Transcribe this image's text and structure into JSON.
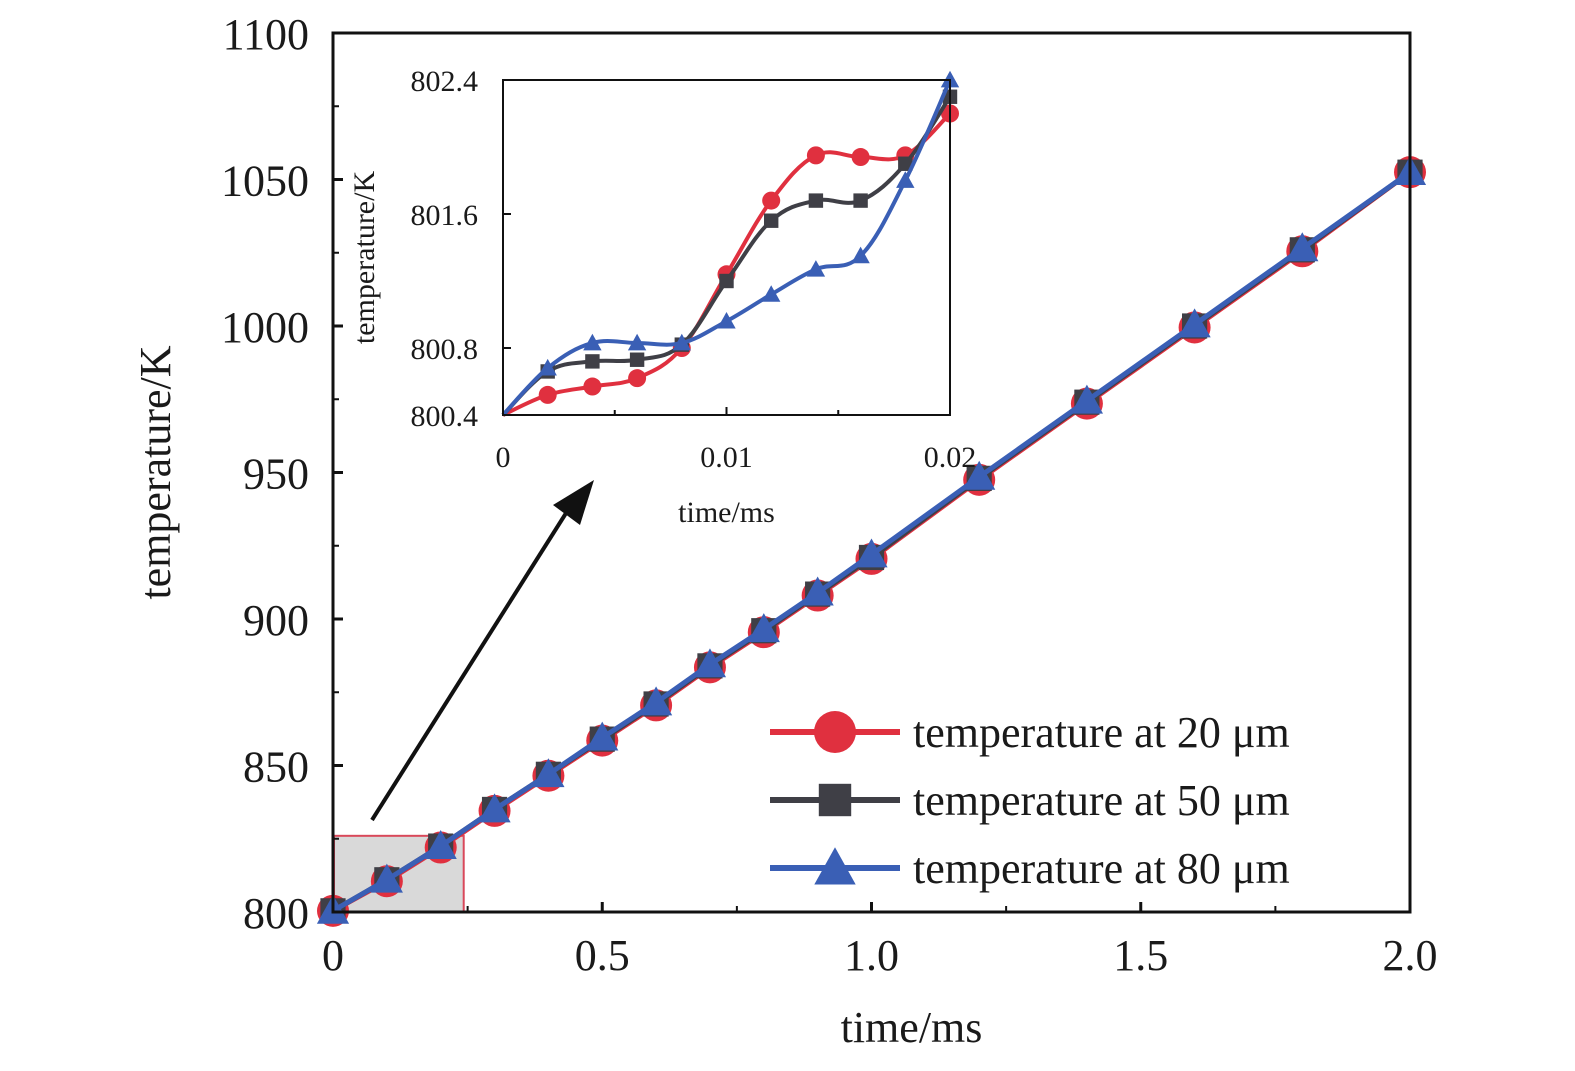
{
  "colors": {
    "series_20": "#e0303f",
    "series_50": "#3f3f46",
    "series_80": "#3a5fb5",
    "zoom_box_fill": "#d9d9d9",
    "zoom_box_stroke": "#d9485a",
    "arrow": "#111111"
  },
  "chart_data": [
    {
      "type": "line",
      "panel": "main",
      "xlabel": "time/ms",
      "ylabel": "temperature/K",
      "xlim": [
        0,
        2.0
      ],
      "ylim": [
        800,
        1100
      ],
      "xticks": [
        "0",
        "0.5",
        "1.0",
        "1.5",
        "2.0"
      ],
      "yticks": [
        "800",
        "850",
        "900",
        "950",
        "1000",
        "1050",
        "1100"
      ],
      "legend_position": "bottom-right",
      "grid": false,
      "series": [
        {
          "name": "temperature at 20 μm",
          "marker": "circle",
          "x": [
            0,
            0.1,
            0.2,
            0.3,
            0.4,
            0.5,
            0.6,
            0.7,
            0.8,
            0.9,
            1.0,
            1.2,
            1.4,
            1.6,
            1.8,
            2.0
          ],
          "y": [
            800.4,
            810.5,
            822,
            834.5,
            846.5,
            858.5,
            870.5,
            883.5,
            895.5,
            908,
            920.5,
            947.5,
            973.5,
            999.5,
            1025.5,
            1052.5
          ]
        },
        {
          "name": "temperature at 50 μm",
          "marker": "square",
          "x": [
            0,
            0.1,
            0.2,
            0.3,
            0.4,
            0.5,
            0.6,
            0.7,
            0.8,
            0.9,
            1.0,
            1.2,
            1.4,
            1.6,
            1.8,
            2.0
          ],
          "y": [
            800.4,
            811,
            822.5,
            835,
            847,
            859,
            871,
            884,
            896,
            908.5,
            921,
            948,
            974,
            1000,
            1026,
            1052.5
          ]
        },
        {
          "name": "temperature at 80 μm",
          "marker": "triangle",
          "x": [
            0,
            0.1,
            0.2,
            0.3,
            0.4,
            0.5,
            0.6,
            0.7,
            0.8,
            0.9,
            1.0,
            1.2,
            1.4,
            1.6,
            1.8,
            2.0
          ],
          "y": [
            800.4,
            811,
            822.5,
            835,
            847,
            859.5,
            871.5,
            884.5,
            896.5,
            909,
            922,
            948.5,
            974.5,
            1000.5,
            1026.5,
            1052.5
          ]
        }
      ],
      "zoom_region": {
        "x": [
          0,
          0.2
        ],
        "y": [
          800,
          826
        ]
      }
    },
    {
      "type": "line",
      "panel": "inset",
      "xlabel": "time/ms",
      "ylabel": "temperature/K",
      "xlim": [
        0,
        0.02
      ],
      "ylim": [
        800.4,
        802.4
      ],
      "xticks": [
        "0",
        "0.01",
        "0.02"
      ],
      "yticks": [
        "800.4",
        "800.8",
        "801.6",
        "802.4"
      ],
      "series": [
        {
          "name": "temperature at 20 μm",
          "marker": "circle",
          "x": [
            0,
            0.002,
            0.004,
            0.006,
            0.008,
            0.01,
            0.012,
            0.014,
            0.016,
            0.018,
            0.02
          ],
          "y": [
            800.4,
            800.52,
            800.57,
            800.62,
            800.8,
            801.24,
            801.68,
            801.95,
            801.94,
            801.95,
            802.2
          ]
        },
        {
          "name": "temperature at 50 μm",
          "marker": "square",
          "x": [
            0,
            0.002,
            0.004,
            0.006,
            0.008,
            0.01,
            0.012,
            0.014,
            0.016,
            0.018,
            0.02
          ],
          "y": [
            800.4,
            800.66,
            800.72,
            800.73,
            800.82,
            801.2,
            801.56,
            801.68,
            801.68,
            801.9,
            802.3
          ]
        },
        {
          "name": "temperature at 80 μm",
          "marker": "triangle",
          "x": [
            0,
            0.002,
            0.004,
            0.006,
            0.008,
            0.01,
            0.012,
            0.014,
            0.016,
            0.018,
            0.02
          ],
          "y": [
            800.4,
            800.68,
            800.83,
            800.83,
            800.83,
            800.96,
            801.12,
            801.27,
            801.35,
            801.8,
            802.4
          ]
        }
      ]
    }
  ]
}
